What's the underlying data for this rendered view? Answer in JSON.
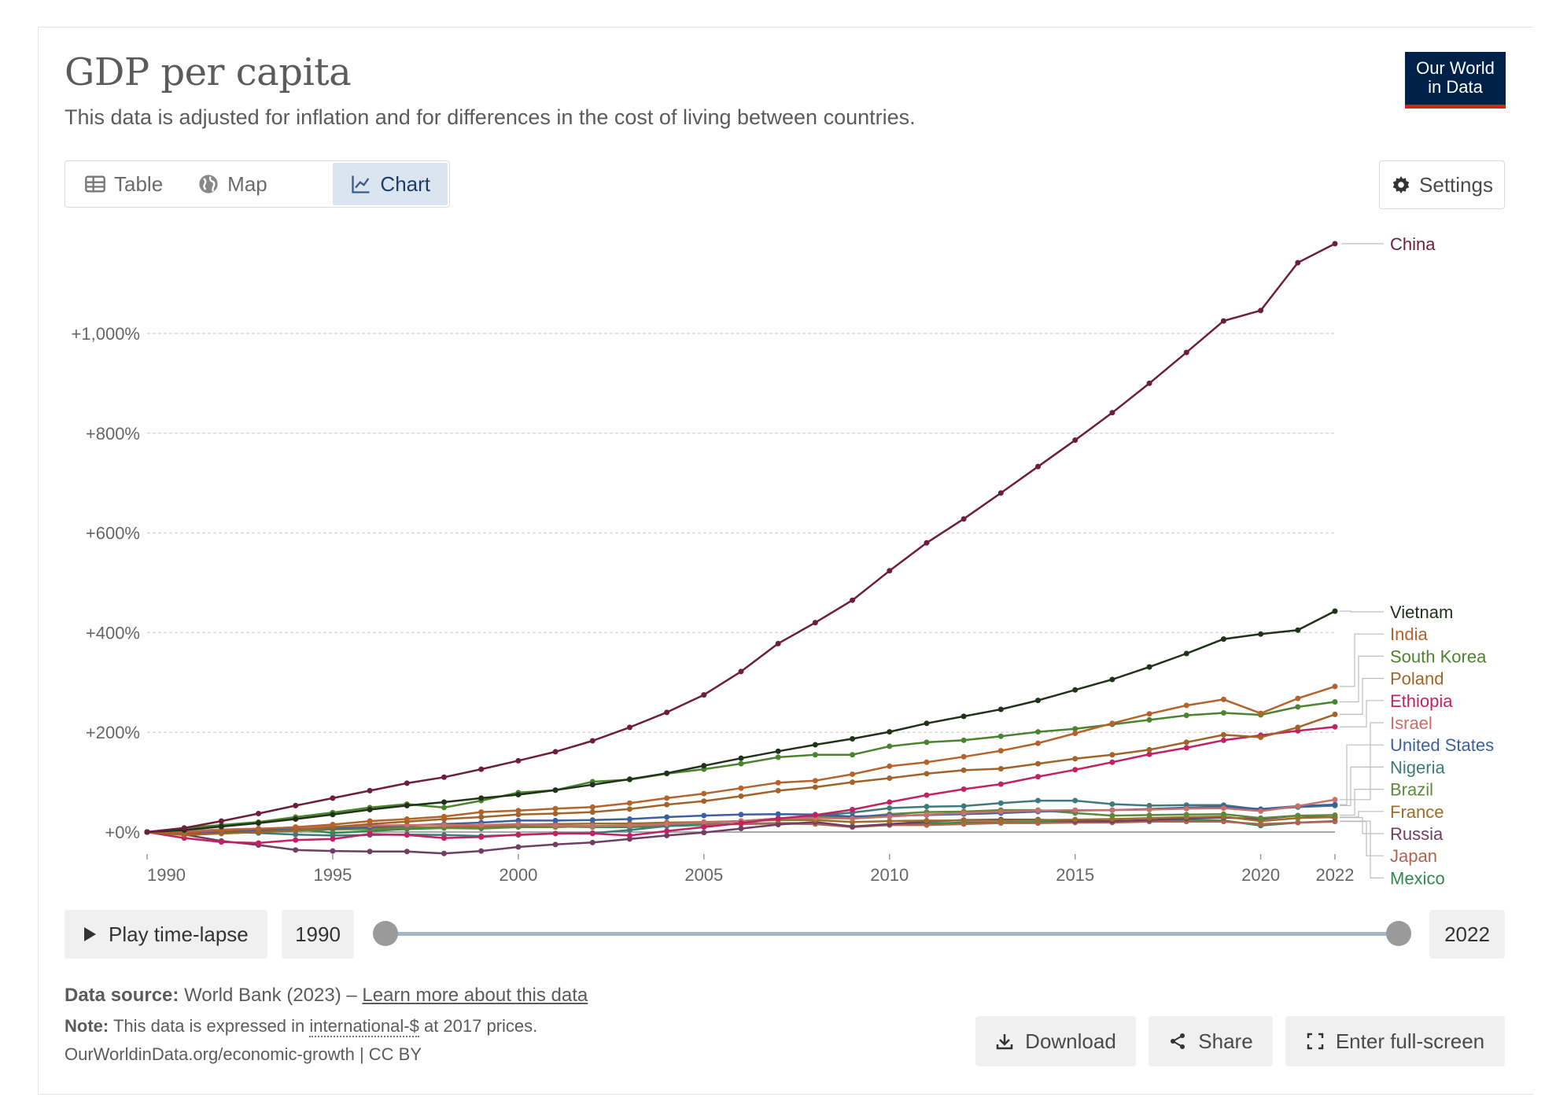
{
  "header": {
    "title": "GDP per capita",
    "subtitle": "This data is adjusted for inflation and for differences in the cost of living between countries.",
    "logo_line1": "Our World",
    "logo_line2": "in Data"
  },
  "tabs": [
    {
      "label": "Table",
      "icon": "table-icon"
    },
    {
      "label": "Map",
      "icon": "globe-icon"
    },
    {
      "label": "Chart",
      "icon": "line-chart-icon",
      "active": true
    }
  ],
  "settings_label": "Settings",
  "timeline": {
    "play_label": "Play time-lapse",
    "start_year": "1990",
    "end_year": "2022"
  },
  "footer": {
    "source_label": "Data source:",
    "source_text": "World Bank (2023) –",
    "source_link": "Learn more about this data",
    "note_label": "Note:",
    "note_pre": "This data is expressed in",
    "note_link": "international-$",
    "note_post": "at 2017 prices.",
    "url": "OurWorldinData.org/economic-growth | CC BY"
  },
  "actions": {
    "download": "Download",
    "share": "Share",
    "fullscreen": "Enter full-screen"
  },
  "chart_data": {
    "type": "line",
    "title": "GDP per capita",
    "x": [
      1990,
      1991,
      1992,
      1993,
      1994,
      1995,
      1996,
      1997,
      1998,
      1999,
      2000,
      2001,
      2002,
      2003,
      2004,
      2005,
      2006,
      2007,
      2008,
      2009,
      2010,
      2011,
      2012,
      2013,
      2014,
      2015,
      2016,
      2017,
      2018,
      2019,
      2020,
      2021,
      2022
    ],
    "x_ticks": [
      "1990",
      "1995",
      "2000",
      "2005",
      "2010",
      "2015",
      "2020",
      "2022"
    ],
    "y_ticks": [
      "+0%",
      "+200%",
      "+400%",
      "+600%",
      "+800%",
      "+1,000%"
    ],
    "ylim": [
      -60,
      1200
    ],
    "grid": "horizontal dotted",
    "series": [
      {
        "name": "China",
        "color": "#6d1e3d",
        "values": [
          0,
          8,
          22,
          37,
          53,
          68,
          83,
          98,
          110,
          126,
          143,
          161,
          183,
          210,
          240,
          275,
          322,
          378,
          420,
          465,
          524,
          580,
          628,
          680,
          733,
          786,
          841,
          900,
          962,
          1025,
          1046,
          1142,
          1180
        ]
      },
      {
        "name": "Vietnam",
        "color": "#20331a",
        "values": [
          0,
          4,
          11,
          18,
          26,
          35,
          45,
          53,
          60,
          68,
          75,
          84,
          95,
          106,
          118,
          133,
          148,
          162,
          175,
          187,
          201,
          218,
          232,
          246,
          264,
          285,
          306,
          331,
          358,
          387,
          397,
          405,
          443
        ]
      },
      {
        "name": "India",
        "color": "#b4632a",
        "values": [
          0,
          -1,
          3,
          6,
          10,
          15,
          22,
          26,
          31,
          40,
          43,
          47,
          50,
          58,
          68,
          77,
          88,
          99,
          103,
          116,
          132,
          140,
          151,
          163,
          178,
          198,
          218,
          237,
          254,
          266,
          238,
          268,
          292
        ]
      },
      {
        "name": "South Korea",
        "color": "#4c832e",
        "values": [
          0,
          8,
          14,
          20,
          30,
          39,
          49,
          56,
          49,
          63,
          79,
          84,
          101,
          105,
          117,
          126,
          137,
          150,
          155,
          155,
          172,
          180,
          184,
          192,
          201,
          207,
          216,
          225,
          234,
          239,
          235,
          251,
          261
        ]
      },
      {
        "name": "Poland",
        "color": "#a0642b",
        "values": [
          0,
          -6,
          -3,
          0,
          4,
          10,
          16,
          21,
          26,
          30,
          35,
          37,
          40,
          46,
          55,
          62,
          72,
          83,
          90,
          100,
          108,
          117,
          124,
          127,
          137,
          147,
          155,
          165,
          180,
          195,
          190,
          210,
          236
        ]
      },
      {
        "name": "Ethiopia",
        "color": "#c32163",
        "values": [
          0,
          -12,
          -20,
          -22,
          -16,
          -14,
          -4,
          -6,
          -12,
          -10,
          -5,
          -3,
          -3,
          -7,
          2,
          10,
          18,
          27,
          34,
          45,
          60,
          74,
          86,
          96,
          111,
          125,
          140,
          156,
          169,
          184,
          194,
          203,
          211
        ]
      },
      {
        "name": "Israel",
        "color": "#c9706c",
        "values": [
          0,
          2,
          5,
          7,
          9,
          11,
          13,
          14,
          14,
          14,
          16,
          13,
          12,
          13,
          16,
          19,
          22,
          27,
          28,
          27,
          31,
          35,
          38,
          41,
          43,
          44,
          44,
          45,
          47,
          48,
          42,
          52,
          65
        ]
      },
      {
        "name": "United States",
        "color": "#3c5fa0",
        "values": [
          0,
          -2,
          1,
          3,
          6,
          8,
          10,
          13,
          16,
          19,
          23,
          23,
          24,
          26,
          30,
          33,
          35,
          36,
          35,
          31,
          33,
          34,
          36,
          38,
          41,
          43,
          44,
          46,
          49,
          51,
          46,
          52,
          55
        ]
      },
      {
        "name": "Nigeria",
        "color": "#3e7a79",
        "values": [
          0,
          2,
          1,
          -2,
          -5,
          -7,
          -6,
          -5,
          -6,
          -8,
          -6,
          -3,
          -2,
          4,
          12,
          18,
          22,
          27,
          33,
          39,
          48,
          51,
          52,
          58,
          63,
          63,
          56,
          53,
          54,
          54,
          45,
          50,
          53
        ]
      },
      {
        "name": "Brazil",
        "color": "#5d8a3a",
        "values": [
          0,
          -2,
          -3,
          0,
          3,
          6,
          7,
          9,
          8,
          7,
          10,
          10,
          12,
          11,
          16,
          18,
          22,
          27,
          31,
          29,
          36,
          40,
          41,
          44,
          44,
          38,
          33,
          34,
          35,
          36,
          28,
          33,
          34
        ]
      },
      {
        "name": "France",
        "color": "#9f6d2a",
        "values": [
          0,
          1,
          2,
          1,
          3,
          5,
          6,
          8,
          10,
          12,
          15,
          16,
          17,
          17,
          19,
          20,
          22,
          24,
          24,
          20,
          22,
          23,
          23,
          23,
          24,
          25,
          26,
          28,
          30,
          31,
          22,
          28,
          30
        ]
      },
      {
        "name": "Russia",
        "color": "#6e3e63",
        "values": [
          0,
          -5,
          -18,
          -26,
          -36,
          -38,
          -39,
          -39,
          -43,
          -38,
          -30,
          -25,
          -21,
          -14,
          -7,
          -1,
          7,
          15,
          20,
          11,
          16,
          21,
          24,
          25,
          25,
          22,
          22,
          24,
          27,
          29,
          26,
          33,
          29
        ]
      },
      {
        "name": "Japan",
        "color": "#b06454",
        "values": [
          0,
          3,
          4,
          4,
          5,
          7,
          9,
          10,
          9,
          9,
          11,
          11,
          11,
          12,
          14,
          15,
          16,
          17,
          16,
          10,
          14,
          14,
          16,
          18,
          18,
          19,
          19,
          21,
          21,
          21,
          16,
          19,
          21
        ]
      },
      {
        "name": "Mexico",
        "color": "#2f8a4d",
        "values": [
          0,
          2,
          4,
          5,
          7,
          -2,
          2,
          6,
          8,
          9,
          12,
          11,
          10,
          10,
          12,
          14,
          17,
          18,
          18,
          11,
          14,
          17,
          19,
          19,
          20,
          21,
          22,
          23,
          24,
          23,
          13,
          19,
          22
        ]
      }
    ]
  }
}
